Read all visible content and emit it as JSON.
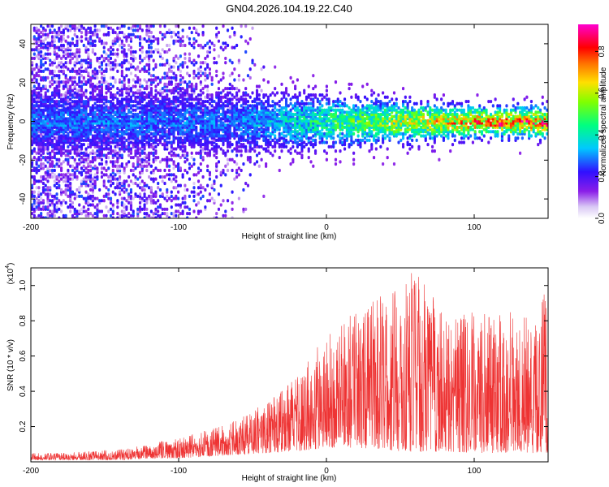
{
  "title": "GN04.2026.104.19.22.C40",
  "chart_data": [
    {
      "type": "heatmap",
      "xlabel": "Height of straight line (km)",
      "ylabel": "Frequency (Hz)",
      "xlim": [
        -200,
        150
      ],
      "ylim": [
        -50,
        50
      ],
      "x_ticks": [
        -200,
        -100,
        0,
        100
      ],
      "x_tick_labels": [
        "-200",
        "-100",
        "0",
        "100"
      ],
      "y_ticks": [
        -40,
        -20,
        0,
        20,
        40
      ],
      "y_tick_labels": [
        "-40",
        "-20",
        "0",
        "20",
        "40"
      ],
      "colorbar": {
        "label": "Normalized spectral amplitude",
        "range": [
          0,
          0.93
        ],
        "ticks": [
          0,
          0.2,
          0.4,
          0.6,
          0.8
        ],
        "tick_labels": [
          "0.0",
          "0.2",
          "0.4",
          "0.6",
          "0.8"
        ],
        "colormap": "rainbow (white-violet-blue-cyan-green-yellow-red-magenta)"
      }
    },
    {
      "type": "line",
      "xlabel": "Height of straight line (km)",
      "ylabel": "SNR (10 * v/v)",
      "y_scale_label": "(x10",
      "y_scale_exponent": "4",
      "xlim": [
        -200,
        150
      ],
      "ylim": [
        0,
        1.1
      ],
      "x_ticks": [
        -200,
        -100,
        0,
        100
      ],
      "x_tick_labels": [
        "-200",
        "-100",
        "0",
        "100"
      ],
      "y_ticks": [
        0.2,
        0.4,
        0.6,
        0.8,
        1.0
      ],
      "y_tick_labels": [
        "0.2",
        "0.4",
        "0.6",
        "0.8",
        "1.0"
      ],
      "series": [
        {
          "name": "SNR",
          "color": "#ee3333",
          "envelope_x": [
            -200,
            -180,
            -160,
            -140,
            -120,
            -100,
            -80,
            -60,
            -40,
            -20,
            0,
            20,
            40,
            60,
            80,
            100,
            120,
            140,
            150
          ],
          "envelope_max": [
            0.05,
            0.05,
            0.06,
            0.07,
            0.1,
            0.14,
            0.18,
            0.24,
            0.34,
            0.48,
            0.75,
            0.85,
            0.97,
            1.1,
            0.85,
            0.85,
            0.85,
            0.85,
            1.0
          ],
          "envelope_min": [
            0.01,
            0.01,
            0.01,
            0.01,
            0.02,
            0.02,
            0.03,
            0.04,
            0.05,
            0.06,
            0.08,
            0.08,
            0.07,
            0.05,
            0.06,
            0.05,
            0.05,
            0.05,
            0.05
          ]
        }
      ]
    }
  ]
}
